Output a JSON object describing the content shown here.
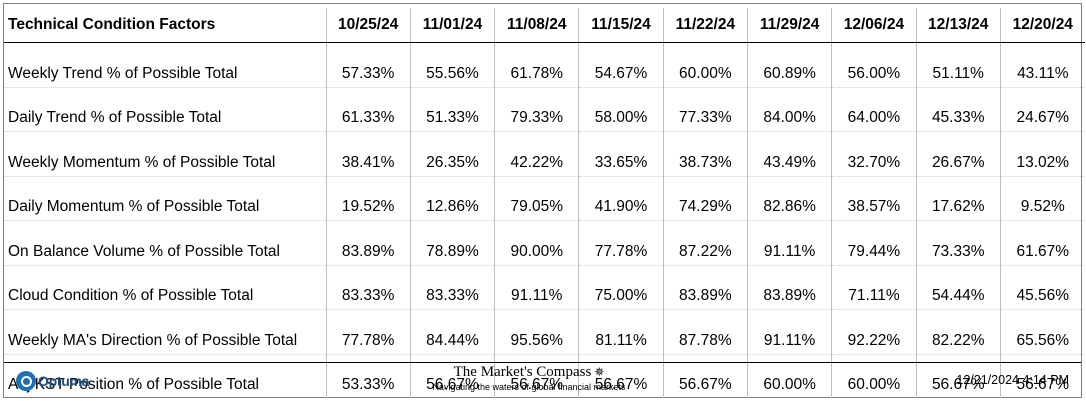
{
  "table": {
    "header": "Technical Condition Factors",
    "dates": [
      "10/25/24",
      "11/01/24",
      "11/08/24",
      "11/15/24",
      "11/22/24",
      "11/29/24",
      "12/06/24",
      "12/13/24",
      "12/20/24"
    ],
    "rows": [
      {
        "label": "Weekly Trend % of Possible Total",
        "values": [
          "57.33%",
          "55.56%",
          "61.78%",
          "54.67%",
          "60.00%",
          "60.89%",
          "56.00%",
          "51.11%",
          "43.11%"
        ]
      },
      {
        "label": "Daily Trend % of Possible Total",
        "values": [
          "61.33%",
          "51.33%",
          "79.33%",
          "58.00%",
          "77.33%",
          "84.00%",
          "64.00%",
          "45.33%",
          "24.67%"
        ]
      },
      {
        "label": "Weekly Momentum % of Possible Total",
        "values": [
          "38.41%",
          "26.35%",
          "42.22%",
          "33.65%",
          "38.73%",
          "43.49%",
          "32.70%",
          "26.67%",
          "13.02%"
        ]
      },
      {
        "label": "Daily Momentum % of Possible Total",
        "values": [
          "19.52%",
          "12.86%",
          "79.05%",
          "41.90%",
          "74.29%",
          "82.86%",
          "38.57%",
          "17.62%",
          "9.52%"
        ]
      },
      {
        "label": "On Balance Volume % of Possible Total",
        "values": [
          "83.89%",
          "78.89%",
          "90.00%",
          "77.78%",
          "87.22%",
          "91.11%",
          "79.44%",
          "73.33%",
          "61.67%"
        ]
      },
      {
        "label": "Cloud Condition % of Possible Total",
        "values": [
          "83.33%",
          "83.33%",
          "91.11%",
          "75.00%",
          "83.89%",
          "83.89%",
          "71.11%",
          "54.44%",
          "45.56%"
        ]
      },
      {
        "label": "Weekly MA's Direction % of Possible Total",
        "values": [
          "77.78%",
          "84.44%",
          "95.56%",
          "81.11%",
          "87.78%",
          "91.11%",
          "92.22%",
          "82.22%",
          "65.56%"
        ]
      },
      {
        "label": "Adj KST Position % of Possible Total",
        "values": [
          "53.33%",
          "56.67%",
          "56.67%",
          "56.67%",
          "56.67%",
          "60.00%",
          "60.00%",
          "56.67%",
          "56.67%"
        ]
      }
    ]
  },
  "footer": {
    "optuma": "Optuma",
    "optuma_icon": "optuma-logo-icon",
    "title": "The Market's Compass",
    "title_icon": "compass-rose-icon",
    "subtitle": "Navigating the waters of global financial markets",
    "timestamp": "12/21/2024 4:14 PM"
  },
  "colors": {
    "optuma_blue": "#1f6fb5",
    "border": "#000000"
  }
}
